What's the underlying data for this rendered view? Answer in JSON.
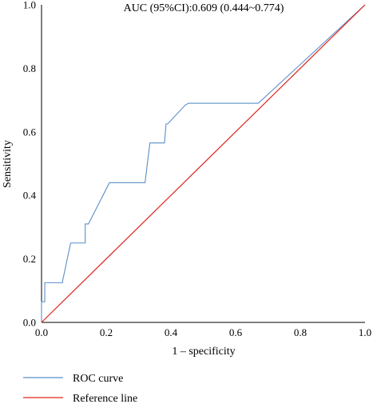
{
  "chart_data": {
    "type": "line",
    "annotation": "AUC (95%CI):0.609 (0.444~0.774)",
    "xlabel": "1 – specificity",
    "ylabel": "Sensitivity",
    "xlim": [
      0,
      1
    ],
    "ylim": [
      0,
      1
    ],
    "x_ticks": [
      0.0,
      0.2,
      0.4,
      0.6,
      0.8,
      1.0
    ],
    "y_ticks": [
      0.0,
      0.2,
      0.4,
      0.6,
      0.8,
      1.0
    ],
    "x_tick_labels": [
      "0.0",
      "0.2",
      "0.4",
      "0.6",
      "0.8",
      "1.0"
    ],
    "y_tick_labels": [
      "0.0",
      "0.2",
      "0.4",
      "0.6",
      "0.8",
      "1.0"
    ],
    "grid": false,
    "legend_position": "bottom-left",
    "series": [
      {
        "name": "ROC curve",
        "color": "#5b8fc7",
        "x": [
          0.0,
          0.0,
          0.01,
          0.01,
          0.02,
          0.02,
          0.065,
          0.065,
          0.09,
          0.09,
          0.135,
          0.135,
          0.145,
          0.21,
          0.32,
          0.32,
          0.335,
          0.375,
          0.38,
          0.385,
          0.39,
          0.445,
          0.455,
          0.67,
          1.0
        ],
        "y": [
          0.0,
          0.065,
          0.065,
          0.125,
          0.125,
          0.125,
          0.125,
          0.13,
          0.25,
          0.25,
          0.25,
          0.31,
          0.31,
          0.44,
          0.44,
          0.44,
          0.565,
          0.565,
          0.565,
          0.625,
          0.625,
          0.685,
          0.69,
          0.69,
          1.0
        ]
      },
      {
        "name": "Reference line",
        "color": "#e0261f",
        "x": [
          0.0,
          1.0
        ],
        "y": [
          0.0,
          1.0
        ]
      }
    ]
  }
}
